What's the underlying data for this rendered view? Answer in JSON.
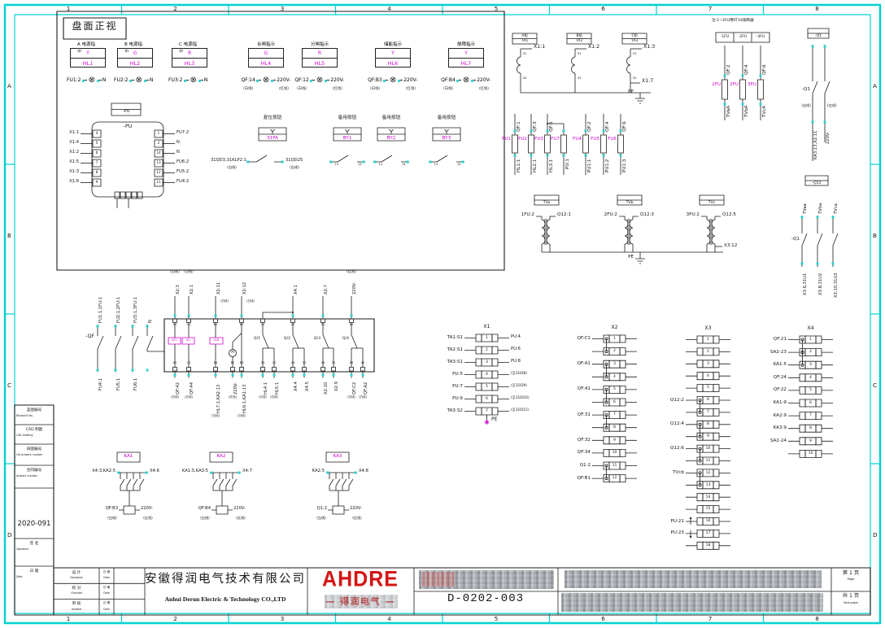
{
  "frame": {
    "top": [
      "1",
      "2",
      "3",
      "4",
      "5",
      "6",
      "7",
      "8"
    ],
    "bottom": [
      "1",
      "2",
      "3",
      "4",
      "5",
      "6",
      "7",
      "8"
    ],
    "left": [
      "A",
      "B",
      "C",
      "D"
    ],
    "right": [
      "A",
      "B",
      "C",
      "D"
    ]
  },
  "colors": {
    "border_cyan": "#00d2d2",
    "accent_magenta": "#cf00cf",
    "logo_red": "#d31414",
    "line": "#1b1b1b"
  },
  "panel": {
    "title": "盘面正视",
    "lamps": [
      {
        "caption": "A 电源指示",
        "lens": "Y",
        "tag": "HL1",
        "left": "FU1:2",
        "right": "N",
        "nl": "",
        "nr": ""
      },
      {
        "caption": "B 电源指示",
        "lens": "G",
        "tag": "HL2",
        "left": "FU2:2",
        "right": "N",
        "nl": "",
        "nr": ""
      },
      {
        "caption": "C 电源指示",
        "lens": "R",
        "tag": "HL3",
        "left": "FU3:2",
        "right": "N",
        "nl": "",
        "nr": ""
      },
      {
        "caption": "合闸指示",
        "lens": "G",
        "tag": "HL4",
        "left": "QF:14",
        "right": "220V-",
        "nl": "(白线)",
        "nr": "(红线)"
      },
      {
        "caption": "分闸指示",
        "lens": "R",
        "tag": "HL5",
        "left": "QF:12",
        "right": "220V-",
        "nl": "(白线)",
        "nr": "(红线)"
      },
      {
        "caption": "储能指示",
        "lens": "Y",
        "tag": "HL6",
        "left": "QF:B3",
        "right": "220V-",
        "nl": "(白线)",
        "nr": "(红线)"
      },
      {
        "caption": "故障指示",
        "lens": "Y",
        "tag": "HL7",
        "left": "QF:B4",
        "right": "220V-",
        "nl": "(白线)",
        "nr": "(红线)"
      }
    ],
    "pu": {
      "tag": "-PU",
      "pins_left": [
        {
          "n": "4",
          "w": "X1:1"
        },
        {
          "n": "5",
          "w": "X1:4"
        },
        {
          "n": "6",
          "w": "X1:2"
        },
        {
          "n": "7",
          "w": "X1:5"
        },
        {
          "n": "8",
          "w": "X1:3"
        },
        {
          "n": "9",
          "w": "X1:6"
        }
      ],
      "pins_right": [
        {
          "n": "1",
          "w": "FU7:2"
        },
        {
          "n": "2",
          "w": "N"
        },
        {
          "n": "14",
          "w": "N"
        },
        {
          "n": "13",
          "w": "FU6:2"
        },
        {
          "n": "12",
          "w": "FU5:2"
        },
        {
          "n": "11",
          "w": "FU4:2"
        }
      ]
    },
    "reset": {
      "caption": "复位按钮",
      "tag": "31FA",
      "left": "31QD3,31KLP2:1",
      "right": "31QD25",
      "nl": "(白线)",
      "nr": "(白线)"
    },
    "spare": {
      "caption": "备用按钮",
      "tags": [
        "BY1",
        "BY2",
        "BY3"
      ],
      "pin_a": "13",
      "pin_b": "14"
    }
  },
  "ct": {
    "units": [
      {
        "phase": "A相",
        "tag": "TA1",
        "wire": "X1:1"
      },
      {
        "phase": "B相",
        "tag": "TA2",
        "wire": "X1:2"
      },
      {
        "phase": "C相",
        "tag": "TA3",
        "wire": "X1:3"
      }
    ],
    "s1": "S1",
    "s2": "S2",
    "common": "X1:7",
    "pe": "PE"
  },
  "fuse_row": [
    {
      "name": "FU1",
      "top": "QF:1",
      "bottom": "HL1:1"
    },
    {
      "name": "FU2",
      "top": "QF:3",
      "bottom": "HL2:1"
    },
    {
      "name": "FU3",
      "top": "QF:5",
      "bottom": "HL3:1"
    },
    {
      "name": "FU7",
      "top": "",
      "bottom": "PU:1"
    },
    {
      "name": "FU4",
      "top": "QF:2",
      "bottom": "PU1:1"
    },
    {
      "name": "FU5",
      "top": "QF:4",
      "bottom": "PU1:2"
    },
    {
      "name": "FU6",
      "top": "QF:6",
      "bottom": "PU1:3"
    }
  ],
  "fuse_tr": {
    "note": "注:1~3FU用RT18熔断器",
    "headers": [
      "-1FU",
      "-2FU",
      "-3FU"
    ],
    "units": [
      {
        "name": "1FU",
        "top": "QF:2",
        "bottom": "TVaA"
      },
      {
        "name": "2FU",
        "top": "QF:4",
        "bottom": "TVbA"
      },
      {
        "name": "3FU",
        "top": "QF:6",
        "bottom": "TVcA"
      }
    ]
  },
  "q1": {
    "header": "-Q1",
    "label": "-Q1",
    "nl": "(白线)",
    "nr": "(红线)",
    "w1": "KA3:13,X2:11",
    "w2": "220V-"
  },
  "tv": {
    "units": [
      {
        "tag": "TVa",
        "prim": "1FU:2",
        "sec": "Q12:1",
        "extra": ""
      },
      {
        "tag": "TVb",
        "prim": "2FU:2",
        "sec": "Q12:3",
        "extra": ""
      },
      {
        "tag": "TVc",
        "prim": "3FU:2",
        "sec": "Q12:5",
        "extra": "X3:12"
      }
    ],
    "pe": "PE"
  },
  "q12": {
    "header": "-Q12",
    "label": "-Q1",
    "units": [
      {
        "top": "TVaa",
        "bottom": "X3:6,31U1"
      },
      {
        "top": "TVba",
        "bottom": "X3:8,31U2"
      },
      {
        "top": "TVca",
        "bottom": "X3:10,31U3"
      }
    ]
  },
  "qf": {
    "label": "-QF",
    "poles": [
      {
        "t": "FU1:1,1FU:1",
        "b": "FU4:1"
      },
      {
        "t": "FU2:1,2FU:1",
        "b": "FU5:1"
      },
      {
        "t": "FU3:1,3FU:1",
        "b": "FU6:1"
      },
      {
        "t": "N",
        "b": ""
      }
    ],
    "top_terms": [
      "A1",
      "C1",
      "B1",
      "B1",
      "11",
      "21",
      "31",
      "41"
    ],
    "top_wires": [
      {
        "w": "X2:3",
        "n": "(白线)"
      },
      {
        "w": "X2:1",
        "n": "(白线)"
      },
      {
        "w": "X2:11",
        "n": "(白线)"
      },
      {
        "w": "X2:12",
        "n": "(白线)"
      },
      {
        "w": "X4:1",
        "n": ""
      },
      {
        "w": "X2:7",
        "n": ""
      },
      {
        "w": "220V-",
        "n": "(红线)"
      }
    ],
    "inner": {
      "c1": "QF1",
      "c2": "M1",
      "c3": "S1B",
      "motor": "M",
      "contacts": [
        "Q/1",
        "Q/2",
        "Q/3",
        "Q/4"
      ]
    },
    "bot_terms": [
      "A2",
      "C2",
      "B4",
      "B2",
      "B3",
      "14",
      "12",
      "24",
      "22",
      "34",
      "32",
      "44",
      "42"
    ],
    "bot_wires": [
      {
        "w": "QF:42",
        "n": "(白线)"
      },
      {
        "w": "QF:44",
        "n": "(白线)"
      },
      {
        "w": "HL7:1,KA2:13",
        "n": "(白线)"
      },
      {
        "w": "220V-",
        "n": "(红线)"
      },
      {
        "w": "HL6:1,KA1:13",
        "n": "(白线)"
      },
      {
        "w": "HL4:1",
        "n": "(白线)"
      },
      {
        "w": "HL5:1",
        "n": "(白线)"
      },
      {
        "w": "X4:4",
        "n": ""
      },
      {
        "w": "X4:5",
        "n": ""
      },
      {
        "w": "X2:10",
        "n": ""
      },
      {
        "w": "X2:9",
        "n": ""
      },
      {
        "w": "QF:C2",
        "n": "(白线)"
      },
      {
        "w": "QF:A2",
        "n": "(白线)"
      }
    ]
  },
  "ka": [
    {
      "tag": "KA1",
      "left": "X4:3,KA2:5",
      "right": "X4:6",
      "cl": "QF:B3",
      "cr": "220V-",
      "nl": "(白线)",
      "nr": "(红线)"
    },
    {
      "tag": "KA2",
      "left": "KA1:5,KA3:5",
      "right": "X4:7",
      "cl": "QF:B4",
      "cr": "220V-",
      "nl": "(白线)",
      "nr": "(红线)"
    },
    {
      "tag": "KA3",
      "left": "KA2:5",
      "right": "X4:8",
      "cl": "Q1:2",
      "cr": "220V-",
      "nl": "(白线)",
      "nr": "(红线)"
    }
  ],
  "strips": {
    "x1": {
      "title": "X1",
      "pe": "PE",
      "rows": [
        {
          "n": "1",
          "l": "TA1:S1",
          "r": "PU:4"
        },
        {
          "n": "2",
          "l": "TA2:S1",
          "r": "PU:6"
        },
        {
          "n": "3",
          "l": "TA3:S1",
          "r": "PU:8"
        },
        {
          "n": "4",
          "l": "PU:5",
          "r": "(至31ID8)"
        },
        {
          "n": "5",
          "l": "PU:7",
          "r": "(至31ID9)"
        },
        {
          "n": "6",
          "l": "PU:9",
          "r": "(至31ID10)"
        },
        {
          "n": "7",
          "l": "TA3:S2",
          "r": "(至31ID11)"
        }
      ]
    },
    "x2": {
      "title": "X2",
      "rows": [
        {
          "n": "1",
          "l": "QF:C1",
          "j": true
        },
        {
          "n": "2"
        },
        {
          "n": "3",
          "l": "QF:A1",
          "j": true
        },
        {
          "n": "4"
        },
        {
          "n": "5",
          "l": "QF:41",
          "j": true
        },
        {
          "n": "6"
        },
        {
          "n": "7",
          "l": "QF:31",
          "j": true
        },
        {
          "n": "8"
        },
        {
          "n": "9",
          "l": "QF:32"
        },
        {
          "n": "10",
          "l": "QF:34"
        },
        {
          "n": "11",
          "l": "Q1:2",
          "j": true
        },
        {
          "n": "12",
          "l": "QF:B1"
        }
      ]
    },
    "x3": {
      "title": "X3",
      "rows": [
        {
          "n": "1"
        },
        {
          "n": "2"
        },
        {
          "n": "3"
        },
        {
          "n": "4"
        },
        {
          "n": "5"
        },
        {
          "n": "6",
          "l": "Q12:2",
          "j": true
        },
        {
          "n": "7"
        },
        {
          "n": "8",
          "l": "Q12:4",
          "j": true
        },
        {
          "n": "9"
        },
        {
          "n": "10",
          "l": "Q12:6",
          "j": true
        },
        {
          "n": "11"
        },
        {
          "n": "12",
          "l": "TVcb",
          "j": true
        },
        {
          "n": "13"
        },
        {
          "n": "14"
        },
        {
          "n": "15"
        },
        {
          "n": "16",
          "l": "PU:21",
          "a": true
        },
        {
          "n": "17",
          "l": "PU:23",
          "a": true
        },
        {
          "n": "18"
        }
      ]
    },
    "x4": {
      "title": "X4",
      "rows": [
        {
          "n": "1",
          "l": "QF:21",
          "j": true
        },
        {
          "n": "2",
          "l": "SA2-23",
          "j": true
        },
        {
          "n": "3",
          "l": "KA1:5"
        },
        {
          "n": "4",
          "l": "QF:24"
        },
        {
          "n": "5",
          "l": "QF:22"
        },
        {
          "n": "6",
          "l": "KA1:9"
        },
        {
          "n": "7",
          "l": "KA2:9"
        },
        {
          "n": "8",
          "l": "KA3:9"
        },
        {
          "n": "9",
          "l": "SA2-24"
        },
        {
          "n": "10"
        }
      ]
    }
  },
  "sidebar": [
    {
      "zh": "蓝图编号",
      "en": "Blueprint No."
    },
    {
      "zh": "CAD 制图",
      "en": "CAD drafting"
    },
    {
      "zh": "旧图编号",
      "en": "Old artwork number"
    },
    {
      "zh": "合同编号",
      "en": "Artwork number"
    },
    {
      "val": "2020-091"
    },
    {
      "zh": "签 名",
      "en": "Signature"
    },
    {
      "zh": "日 期",
      "en": "Date"
    }
  ],
  "titleblock": {
    "rows": [
      {
        "zh": "设 计",
        "en": "Designed",
        "dzh": "日 期",
        "den": "Date"
      },
      {
        "zh": "校 对",
        "en": "Checked",
        "dzh": "日 期",
        "den": "Date"
      },
      {
        "zh": "审 核",
        "en": "Audited",
        "dzh": "日 期",
        "den": "Date"
      }
    ],
    "company_zh": "安徽得润电气技术有限公司",
    "company_en": "Anhui Derun Electric & Technology CO.,LTD",
    "logo_main": "AHDRE",
    "logo_sub": "— 得润电气 —",
    "doc_no": "D-0202-003",
    "page_zh": "第 1 页",
    "page_en": "Page",
    "total_zh": "共 1 页",
    "total_en": "Total pages"
  }
}
